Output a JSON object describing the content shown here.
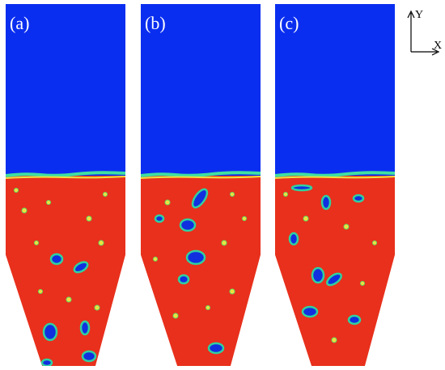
{
  "panels": [
    {
      "label": "(a)"
    },
    {
      "label": "(b)"
    },
    {
      "label": "(c)"
    }
  ],
  "axes": {
    "y_label": "Y",
    "x_label": "X"
  }
}
